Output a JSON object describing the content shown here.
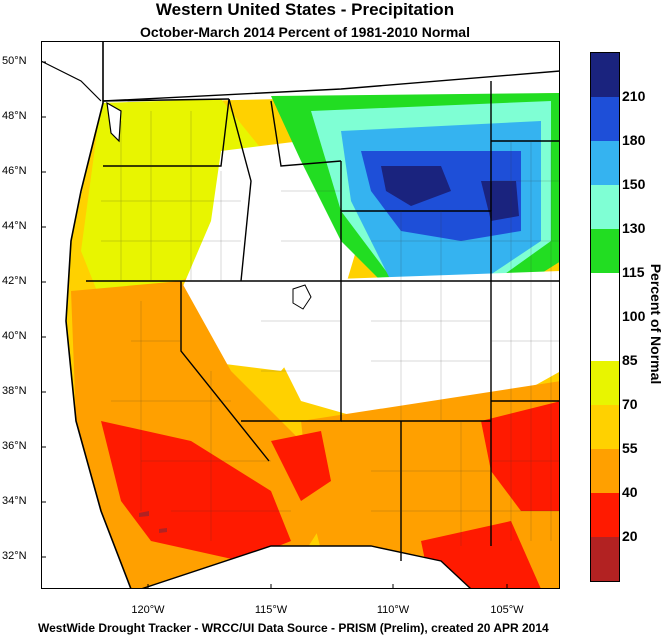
{
  "title": "Western United States - Precipitation",
  "subtitle": "October-March 2014  Percent of 1981-2010 Normal",
  "footer": "WestWide Drought Tracker - WRCC/UI  Data Source - PRISM (Prelim), created 20 APR 2014",
  "latitude_labels": [
    "50°N",
    "48°N",
    "46°N",
    "44°N",
    "42°N",
    "40°N",
    "38°N",
    "36°N",
    "34°N",
    "32°N"
  ],
  "longitude_labels": [
    "120°W",
    "115°W",
    "110°W",
    "105°W"
  ],
  "legend": {
    "title": "Percent of Normal",
    "labels": [
      "210",
      "180",
      "150",
      "130",
      "115",
      "100",
      "85",
      "70",
      "55",
      "40",
      "20"
    ],
    "colors": [
      "#1a237e",
      "#1e4fd8",
      "#35b3f0",
      "#7fffd4",
      "#22dd22",
      "#ffffff",
      "#ffffff",
      "#e8f500",
      "#ffd100",
      "#ffa000",
      "#ff1a00",
      "#b22222"
    ]
  },
  "map": {
    "colors": {
      "very_wet": "#1a237e",
      "wet_dark": "#1e4fd8",
      "wet": "#35b3f0",
      "moist": "#7fffd4",
      "green": "#22dd22",
      "normal": "#ffffff",
      "yellow": "#e8f500",
      "gold": "#ffd100",
      "orange": "#ffa000",
      "red": "#ff1a00",
      "dark_red": "#b22222"
    }
  }
}
